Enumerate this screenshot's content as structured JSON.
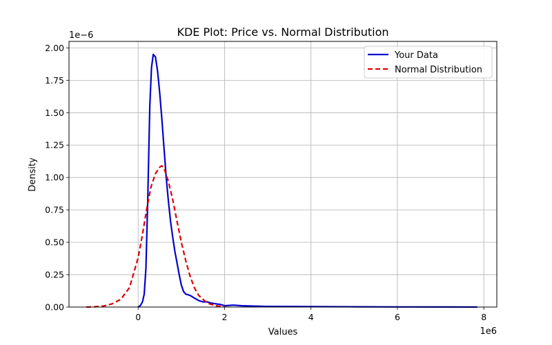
{
  "chart_data": {
    "type": "line",
    "title": "KDE Plot: Price vs. Normal Distribution",
    "xlabel": "Values",
    "ylabel": "Density",
    "x_offset_label": "1e6",
    "y_offset_label": "1e−6",
    "xlim": [
      -1.6,
      8.3
    ],
    "ylim": [
      0,
      2.05
    ],
    "x_ticks": [
      0,
      2,
      4,
      6,
      8
    ],
    "x_tick_labels": [
      "0",
      "2",
      "4",
      "6",
      "8"
    ],
    "y_ticks": [
      0,
      0.25,
      0.5,
      0.75,
      1.0,
      1.25,
      1.5,
      1.75,
      2.0
    ],
    "y_tick_labels": [
      "0.00",
      "0.25",
      "0.50",
      "0.75",
      "1.00",
      "1.25",
      "1.50",
      "1.75",
      "2.00"
    ],
    "grid": true,
    "legend_position": "top-right",
    "series": [
      {
        "name": "Your Data",
        "color": "#0000cc",
        "style": "solid",
        "x": [
          0.0,
          0.05,
          0.1,
          0.14,
          0.18,
          0.22,
          0.27,
          0.31,
          0.35,
          0.4,
          0.45,
          0.5,
          0.55,
          0.6,
          0.65,
          0.7,
          0.75,
          0.8,
          0.85,
          0.9,
          0.95,
          1.0,
          1.05,
          1.1,
          1.2,
          1.3,
          1.4,
          1.5,
          1.6,
          1.7,
          1.8,
          1.9,
          2.0,
          2.2,
          2.4,
          2.6,
          3.0,
          3.5,
          4.0,
          5.0,
          6.0,
          7.0,
          7.85
        ],
        "y": [
          0.0,
          0.01,
          0.04,
          0.1,
          0.3,
          0.8,
          1.55,
          1.85,
          1.95,
          1.93,
          1.82,
          1.65,
          1.45,
          1.22,
          1.0,
          0.82,
          0.66,
          0.54,
          0.43,
          0.34,
          0.25,
          0.17,
          0.12,
          0.1,
          0.09,
          0.07,
          0.05,
          0.04,
          0.04,
          0.03,
          0.025,
          0.02,
          0.01,
          0.015,
          0.01,
          0.008,
          0.005,
          0.004,
          0.003,
          0.002,
          0.001,
          0.0005,
          0.0
        ]
      },
      {
        "name": "Normal Distribution",
        "color": "#dd0000",
        "style": "dashed",
        "x": [
          -1.2,
          -1.0,
          -0.8,
          -0.6,
          -0.4,
          -0.2,
          0.0,
          0.1,
          0.2,
          0.3,
          0.4,
          0.5,
          0.55,
          0.6,
          0.7,
          0.8,
          0.9,
          1.0,
          1.1,
          1.2,
          1.3,
          1.4,
          1.6,
          1.8,
          2.0
        ],
        "y": [
          0.0,
          0.002,
          0.008,
          0.025,
          0.06,
          0.15,
          0.38,
          0.56,
          0.76,
          0.93,
          1.03,
          1.08,
          1.09,
          1.07,
          0.97,
          0.83,
          0.66,
          0.5,
          0.36,
          0.24,
          0.15,
          0.09,
          0.03,
          0.01,
          0.002
        ]
      }
    ]
  }
}
